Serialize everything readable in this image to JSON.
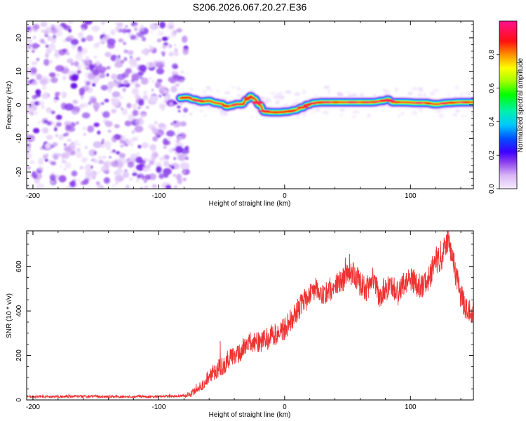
{
  "title": "S206.2026.067.20.27.E36",
  "chart_data": [
    {
      "type": "heatmap",
      "xlabel": "Height of straight line (km)",
      "ylabel": "Frequency (Hz)",
      "xlim": [
        -205,
        150
      ],
      "ylim": [
        -25,
        25
      ],
      "xticks": [
        -200,
        -100,
        0,
        100
      ],
      "yticks": [
        -20,
        -10,
        0,
        10,
        20
      ],
      "noise_region_x": [
        -205,
        -82
      ],
      "ridge_points": [
        {
          "x": -83,
          "y": 2.0
        },
        {
          "x": -78,
          "y": 2.2
        },
        {
          "x": -72,
          "y": 1.6
        },
        {
          "x": -66,
          "y": 1.0
        },
        {
          "x": -60,
          "y": 1.2
        },
        {
          "x": -55,
          "y": 0.6
        },
        {
          "x": -50,
          "y": 0.3
        },
        {
          "x": -46,
          "y": -0.5
        },
        {
          "x": -42,
          "y": -0.2
        },
        {
          "x": -38,
          "y": 0.2
        },
        {
          "x": -34,
          "y": 0.2
        },
        {
          "x": -30,
          "y": 1.6
        },
        {
          "x": -27,
          "y": 2.6
        },
        {
          "x": -24,
          "y": 1.8
        },
        {
          "x": -20,
          "y": 0.0
        },
        {
          "x": -16,
          "y": -2.0
        },
        {
          "x": -10,
          "y": -2.2
        },
        {
          "x": -4,
          "y": -2.2
        },
        {
          "x": 2,
          "y": -2.0
        },
        {
          "x": 8,
          "y": -1.6
        },
        {
          "x": 14,
          "y": -0.8
        },
        {
          "x": 18,
          "y": 0.0
        },
        {
          "x": 24,
          "y": 0.6
        },
        {
          "x": 30,
          "y": 0.8
        },
        {
          "x": 40,
          "y": 0.8
        },
        {
          "x": 55,
          "y": 0.8
        },
        {
          "x": 70,
          "y": 0.8
        },
        {
          "x": 78,
          "y": 1.2
        },
        {
          "x": 82,
          "y": 1.6
        },
        {
          "x": 86,
          "y": 0.8
        },
        {
          "x": 95,
          "y": 0.8
        },
        {
          "x": 105,
          "y": 0.6
        },
        {
          "x": 112,
          "y": 0.6
        },
        {
          "x": 120,
          "y": 0.2
        },
        {
          "x": 130,
          "y": 0.6
        },
        {
          "x": 140,
          "y": 0.8
        },
        {
          "x": 150,
          "y": 0.8
        }
      ],
      "colorbar": {
        "label": "Normalized spectral amplitude",
        "range": [
          0,
          1
        ],
        "ticks": [
          0.0,
          0.2,
          0.4,
          0.6,
          0.8
        ],
        "tick_labels": [
          "0.0",
          "0.2",
          "0.4",
          "0.6",
          "0.8"
        ]
      }
    },
    {
      "type": "line",
      "xlabel": "Height of straight line (km)",
      "ylabel": "SNR (10 * v/v)",
      "xlim": [
        -205,
        150
      ],
      "ylim": [
        0,
        760
      ],
      "xticks": [
        -200,
        -100,
        0,
        100
      ],
      "yticks": [
        0,
        200,
        400,
        600
      ],
      "series": [
        {
          "name": "SNR",
          "color": "#ee3333",
          "envelope": {
            "x": [
              -205,
              -150,
              -100,
              -82,
              -75,
              -70,
              -65,
              -60,
              -55,
              -50,
              -45,
              -40,
              -35,
              -30,
              -25,
              -20,
              -15,
              -10,
              -5,
              0,
              5,
              10,
              15,
              20,
              25,
              30,
              35,
              40,
              45,
              50,
              55,
              60,
              65,
              70,
              75,
              80,
              85,
              90,
              95,
              100,
              105,
              110,
              115,
              120,
              125,
              128,
              130,
              133,
              136,
              140,
              143,
              146,
              150
            ],
            "y": [
              15,
              15,
              15,
              18,
              25,
              45,
              70,
              110,
              130,
              150,
              180,
              200,
              220,
              250,
              260,
              260,
              270,
              290,
              300,
              320,
              360,
              400,
              440,
              470,
              500,
              480,
              490,
              520,
              530,
              560,
              570,
              520,
              500,
              540,
              470,
              500,
              520,
              480,
              530,
              550,
              520,
              500,
              560,
              620,
              640,
              700,
              720,
              650,
              560,
              470,
              430,
              400,
              410
            ]
          },
          "noise_amplitude": [
            {
              "x": -205,
              "a": 8
            },
            {
              "x": -82,
              "a": 8
            },
            {
              "x": -70,
              "a": 25
            },
            {
              "x": -50,
              "a": 60
            },
            {
              "x": 0,
              "a": 70
            },
            {
              "x": 50,
              "a": 75
            },
            {
              "x": 150,
              "a": 80
            }
          ]
        }
      ]
    }
  ]
}
